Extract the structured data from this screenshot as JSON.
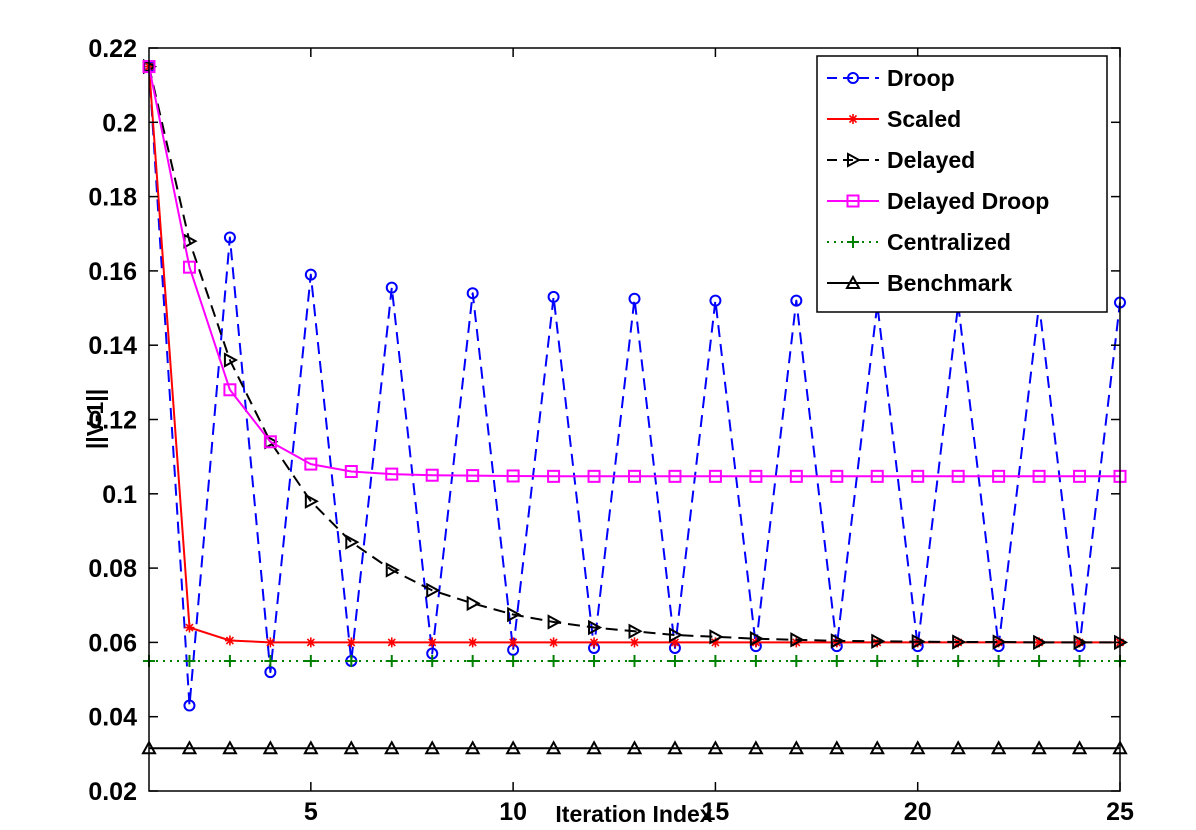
{
  "chart_data": {
    "type": "line",
    "title": "",
    "xlabel": "Iteration Index",
    "ylabel": "||V-1||",
    "xlim": [
      1,
      25
    ],
    "ylim": [
      0.02,
      0.22
    ],
    "xticks": [
      5,
      10,
      15,
      20,
      25
    ],
    "yticks": [
      0.02,
      0.04,
      0.06,
      0.08,
      0.1,
      0.12,
      0.14,
      0.16,
      0.18,
      0.2,
      0.22
    ],
    "x": [
      1,
      2,
      3,
      4,
      5,
      6,
      7,
      8,
      9,
      10,
      11,
      12,
      13,
      14,
      15,
      16,
      17,
      18,
      19,
      20,
      21,
      22,
      23,
      24,
      25
    ],
    "legend_position": "top-right",
    "series": [
      {
        "name": "Droop",
        "color": "#0000ff",
        "dash": "dashed",
        "marker": "circle",
        "values": [
          0.215,
          0.043,
          0.169,
          0.052,
          0.159,
          0.055,
          0.1555,
          0.057,
          0.154,
          0.058,
          0.153,
          0.0585,
          0.1525,
          0.0585,
          0.152,
          0.059,
          0.152,
          0.059,
          0.151,
          0.059,
          0.151,
          0.059,
          0.151,
          0.059,
          0.1515
        ]
      },
      {
        "name": "Scaled",
        "color": "#ff0000",
        "dash": "solid",
        "marker": "star",
        "values": [
          0.215,
          0.064,
          0.0605,
          0.06,
          0.06,
          0.06,
          0.06,
          0.06,
          0.06,
          0.06,
          0.06,
          0.06,
          0.06,
          0.06,
          0.06,
          0.06,
          0.06,
          0.06,
          0.06,
          0.06,
          0.06,
          0.06,
          0.06,
          0.06,
          0.06
        ]
      },
      {
        "name": "Delayed",
        "color": "#000000",
        "dash": "dashed",
        "marker": "triangle-right",
        "values": [
          0.215,
          0.168,
          0.136,
          0.114,
          0.098,
          0.087,
          0.0795,
          0.074,
          0.0705,
          0.0675,
          0.0655,
          0.064,
          0.063,
          0.062,
          0.0615,
          0.061,
          0.0607,
          0.0604,
          0.0603,
          0.0602,
          0.0601,
          0.0601,
          0.06,
          0.06,
          0.06
        ]
      },
      {
        "name": "Delayed Droop",
        "color": "#ff00ff",
        "dash": "solid",
        "marker": "square",
        "values": [
          0.215,
          0.161,
          0.128,
          0.114,
          0.108,
          0.106,
          0.1053,
          0.105,
          0.1049,
          0.1048,
          0.1047,
          0.1047,
          0.1047,
          0.1047,
          0.1047,
          0.1047,
          0.1047,
          0.1047,
          0.1047,
          0.1047,
          0.1047,
          0.1047,
          0.1047,
          0.1047,
          0.1047
        ]
      },
      {
        "name": "Centralized",
        "color": "#008000",
        "dash": "dotted",
        "marker": "plus",
        "values": [
          0.055,
          0.055,
          0.055,
          0.055,
          0.055,
          0.055,
          0.055,
          0.055,
          0.055,
          0.055,
          0.055,
          0.055,
          0.055,
          0.055,
          0.055,
          0.055,
          0.055,
          0.055,
          0.055,
          0.055,
          0.055,
          0.055,
          0.055,
          0.055,
          0.055
        ]
      },
      {
        "name": "Benchmark",
        "color": "#000000",
        "dash": "solid",
        "marker": "triangle-up",
        "values": [
          0.0315,
          0.0315,
          0.0315,
          0.0315,
          0.0315,
          0.0315,
          0.0315,
          0.0315,
          0.0315,
          0.0315,
          0.0315,
          0.0315,
          0.0315,
          0.0315,
          0.0315,
          0.0315,
          0.0315,
          0.0315,
          0.0315,
          0.0315,
          0.0315,
          0.0315,
          0.0315,
          0.0315,
          0.0315
        ]
      }
    ]
  }
}
